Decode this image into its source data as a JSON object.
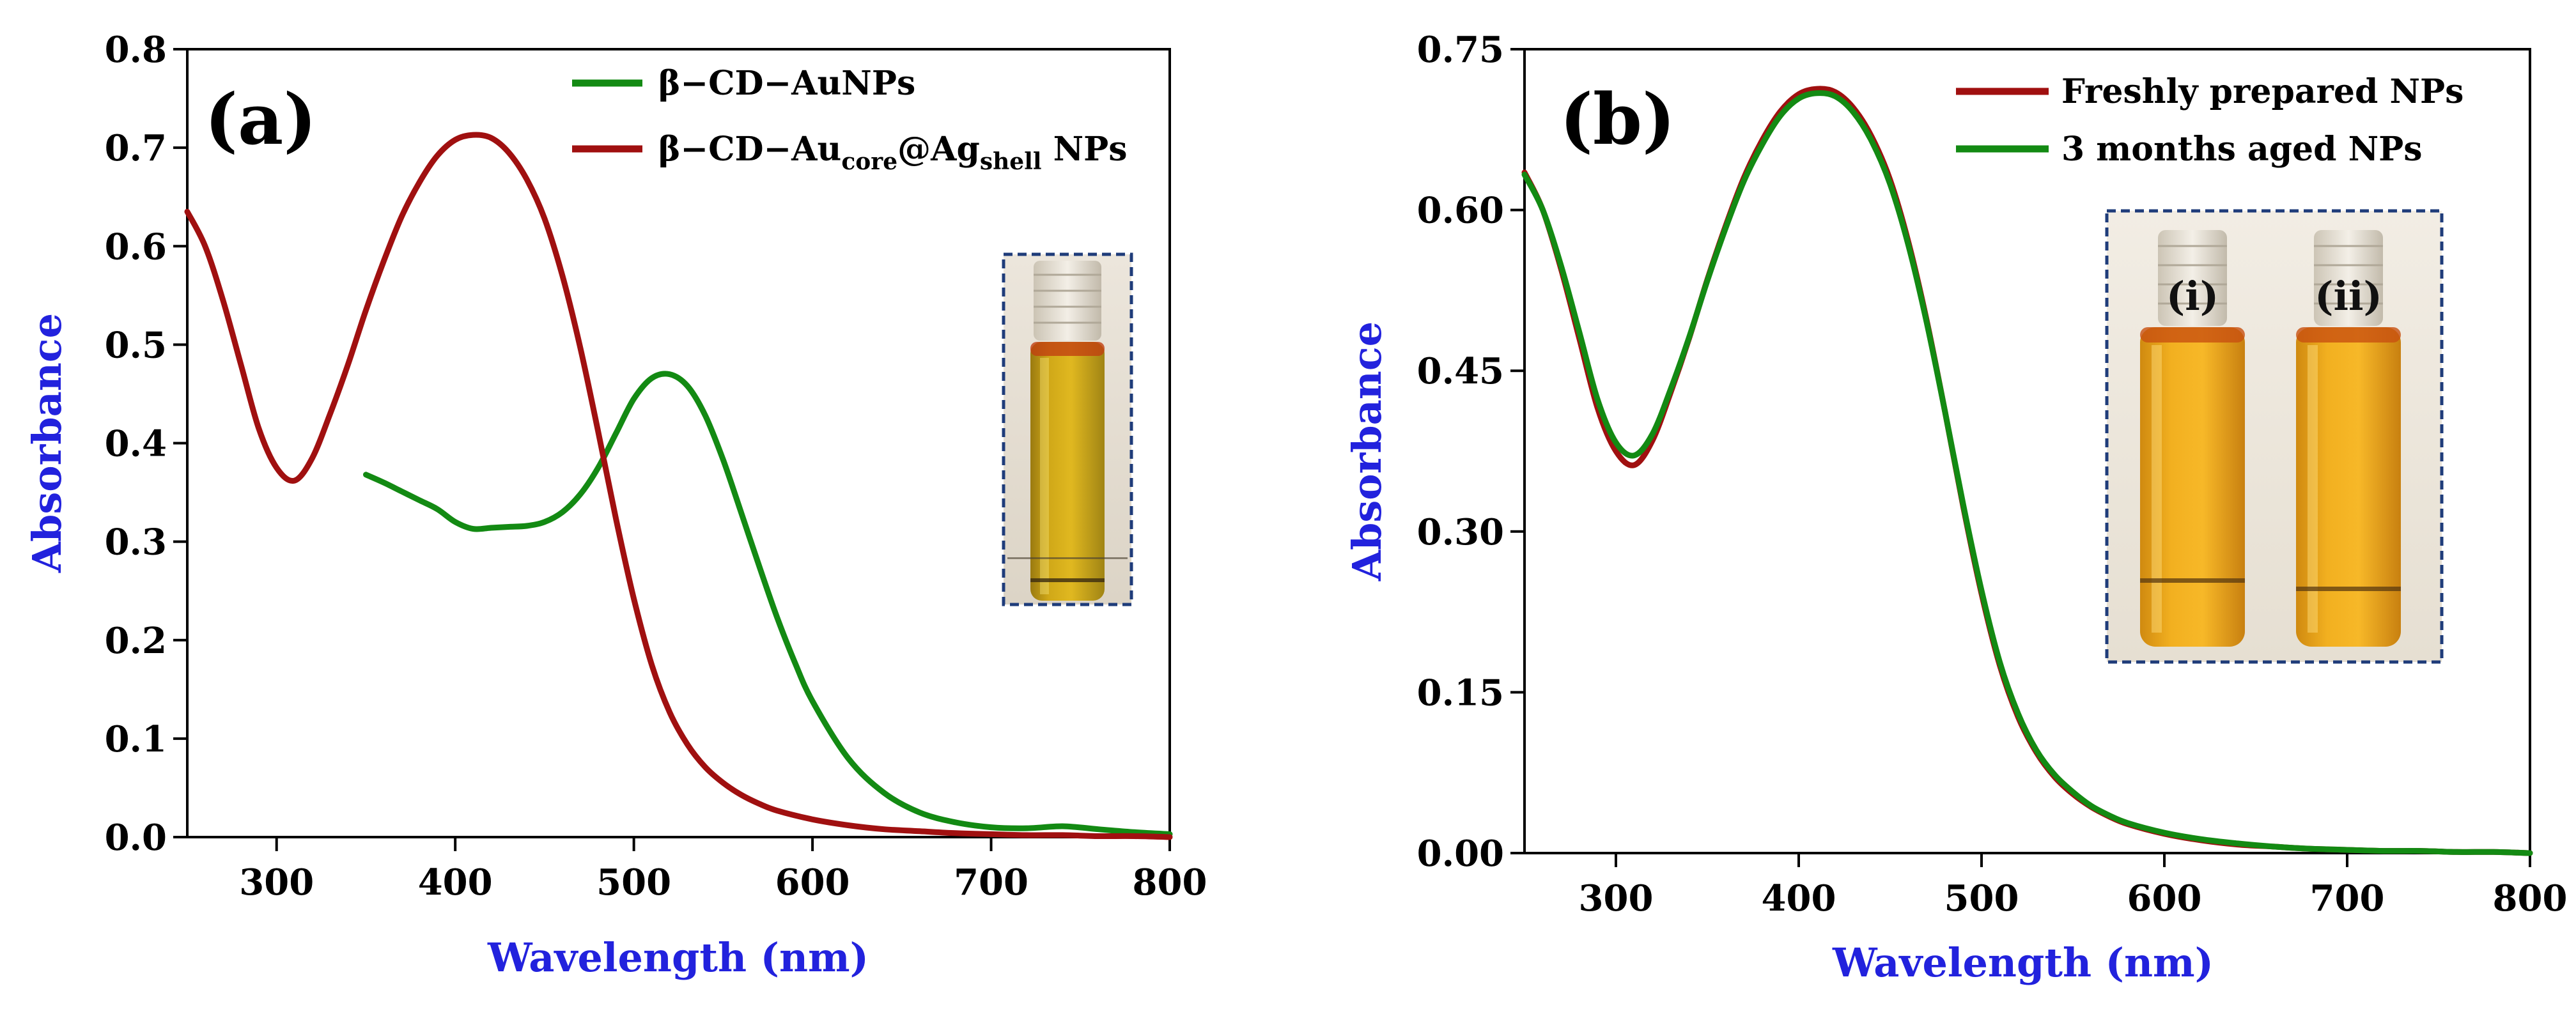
{
  "chart_data": [
    {
      "type": "line",
      "panel_label": "(a)",
      "xlabel": "Wavelength (nm)",
      "ylabel": "Absorbance",
      "xlim": [
        250,
        800
      ],
      "ylim": [
        0,
        0.8
      ],
      "xticks": [
        300,
        400,
        500,
        600,
        700,
        800
      ],
      "xtick_labels": [
        "300",
        "400",
        "500",
        "600",
        "700",
        "800"
      ],
      "yticks": [
        0,
        0.1,
        0.2,
        0.3,
        0.4,
        0.5,
        0.6,
        0.7,
        0.8
      ],
      "ytick_labels": [
        "0.0",
        "0.1",
        "0.2",
        "0.3",
        "0.4",
        "0.5",
        "0.6",
        "0.7",
        "0.8"
      ],
      "legend_position": "top-right",
      "series": [
        {
          "name": "β−CD−AuNPs",
          "color": "#138a13",
          "x": [
            350,
            360,
            370,
            380,
            390,
            400,
            410,
            420,
            430,
            440,
            450,
            460,
            470,
            480,
            490,
            500,
            510,
            520,
            530,
            540,
            550,
            560,
            570,
            580,
            590,
            600,
            620,
            640,
            660,
            680,
            700,
            720,
            740,
            760,
            780,
            800
          ],
          "y": [
            0.368,
            0.36,
            0.351,
            0.342,
            0.333,
            0.32,
            0.313,
            0.314,
            0.315,
            0.316,
            0.32,
            0.33,
            0.348,
            0.375,
            0.41,
            0.445,
            0.466,
            0.47,
            0.458,
            0.428,
            0.383,
            0.33,
            0.276,
            0.224,
            0.178,
            0.138,
            0.08,
            0.045,
            0.025,
            0.015,
            0.01,
            0.009,
            0.011,
            0.008,
            0.005,
            0.003
          ]
        },
        {
          "name": "β−CD−Au",
          "name_sub": "core",
          "name_mid": "@Ag",
          "name_sub2": "shell",
          "name_end": " NPs",
          "color": "#a01010",
          "x": [
            250,
            260,
            270,
            280,
            290,
            300,
            310,
            320,
            330,
            340,
            350,
            360,
            370,
            380,
            390,
            400,
            410,
            420,
            430,
            440,
            450,
            460,
            470,
            480,
            490,
            500,
            510,
            520,
            530,
            540,
            550,
            560,
            570,
            580,
            600,
            620,
            640,
            660,
            680,
            700,
            720,
            740,
            760,
            780,
            800
          ],
          "y": [
            0.635,
            0.6,
            0.545,
            0.48,
            0.415,
            0.375,
            0.362,
            0.385,
            0.43,
            0.48,
            0.535,
            0.585,
            0.63,
            0.665,
            0.692,
            0.708,
            0.713,
            0.71,
            0.695,
            0.668,
            0.628,
            0.57,
            0.497,
            0.412,
            0.323,
            0.242,
            0.175,
            0.127,
            0.094,
            0.071,
            0.055,
            0.043,
            0.034,
            0.027,
            0.018,
            0.012,
            0.008,
            0.006,
            0.004,
            0.003,
            0.002,
            0.002,
            0.001,
            0.001,
            0.0
          ]
        }
      ]
    },
    {
      "type": "line",
      "panel_label": "(b)",
      "xlabel": "Wavelength (nm)",
      "ylabel": "Absorbance",
      "xlim": [
        250,
        800
      ],
      "ylim": [
        0,
        0.75
      ],
      "xticks": [
        300,
        400,
        500,
        600,
        700,
        800
      ],
      "xtick_labels": [
        "300",
        "400",
        "500",
        "600",
        "700",
        "800"
      ],
      "yticks": [
        0,
        0.15,
        0.3,
        0.45,
        0.6,
        0.75
      ],
      "ytick_labels": [
        "0.00",
        "0.15",
        "0.30",
        "0.45",
        "0.60",
        "0.75"
      ],
      "legend_position": "top-right",
      "inset_labels": [
        "(i)",
        "(ii)"
      ],
      "series": [
        {
          "name": "Freshly prepared NPs",
          "color": "#a01010",
          "x": [
            250,
            260,
            270,
            280,
            290,
            300,
            310,
            320,
            330,
            340,
            350,
            360,
            370,
            380,
            390,
            400,
            410,
            420,
            430,
            440,
            450,
            460,
            470,
            480,
            490,
            500,
            510,
            520,
            530,
            540,
            550,
            560,
            570,
            580,
            600,
            620,
            640,
            660,
            680,
            700,
            720,
            740,
            760,
            780,
            800
          ],
          "y": [
            0.635,
            0.6,
            0.545,
            0.48,
            0.415,
            0.375,
            0.362,
            0.385,
            0.43,
            0.48,
            0.535,
            0.585,
            0.63,
            0.665,
            0.692,
            0.708,
            0.713,
            0.71,
            0.695,
            0.668,
            0.628,
            0.57,
            0.497,
            0.412,
            0.323,
            0.242,
            0.175,
            0.127,
            0.094,
            0.071,
            0.055,
            0.043,
            0.034,
            0.027,
            0.018,
            0.012,
            0.008,
            0.006,
            0.004,
            0.003,
            0.002,
            0.002,
            0.001,
            0.001,
            0.0
          ]
        },
        {
          "name": "3 months aged NPs",
          "color": "#138a13",
          "x": [
            250,
            260,
            270,
            280,
            290,
            300,
            310,
            320,
            330,
            340,
            350,
            360,
            370,
            380,
            390,
            400,
            410,
            420,
            430,
            440,
            450,
            460,
            470,
            480,
            490,
            500,
            510,
            520,
            530,
            540,
            550,
            560,
            570,
            580,
            600,
            620,
            640,
            660,
            680,
            700,
            720,
            740,
            760,
            780,
            800
          ],
          "y": [
            0.633,
            0.6,
            0.548,
            0.486,
            0.423,
            0.383,
            0.371,
            0.391,
            0.433,
            0.481,
            0.534,
            0.583,
            0.627,
            0.661,
            0.688,
            0.704,
            0.709,
            0.706,
            0.691,
            0.664,
            0.624,
            0.567,
            0.495,
            0.412,
            0.325,
            0.245,
            0.178,
            0.13,
            0.096,
            0.073,
            0.057,
            0.044,
            0.035,
            0.028,
            0.019,
            0.013,
            0.009,
            0.006,
            0.004,
            0.003,
            0.002,
            0.002,
            0.001,
            0.001,
            0.0
          ]
        }
      ]
    }
  ]
}
